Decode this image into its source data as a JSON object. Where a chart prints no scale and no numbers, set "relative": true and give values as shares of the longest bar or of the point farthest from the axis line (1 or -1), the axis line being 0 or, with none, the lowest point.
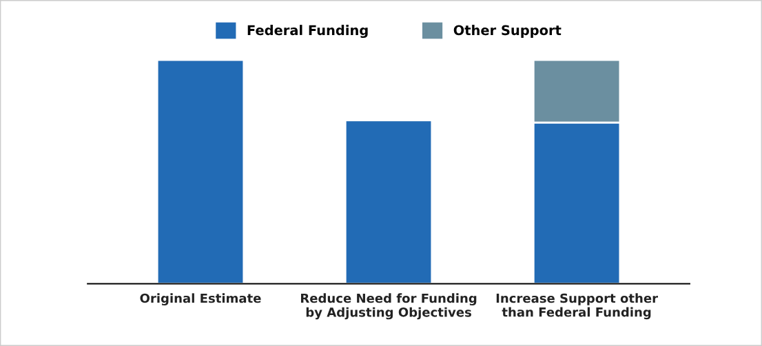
{
  "chart_data": {
    "type": "bar",
    "stacked": true,
    "relative": true,
    "legend": "top",
    "grid": false,
    "categories": [
      "Original Estimate",
      "Reduce Need for Funding\nby Adjusting Objectives",
      "Increase Support other\nthan Federal Funding"
    ],
    "series": [
      {
        "name": "Federal Funding",
        "color": "#226bb5",
        "values": [
          1,
          0.73,
          0.72
        ]
      },
      {
        "name": "Other Support",
        "color": "#6b8fa0",
        "values": [
          null,
          null,
          0.28
        ]
      }
    ]
  }
}
